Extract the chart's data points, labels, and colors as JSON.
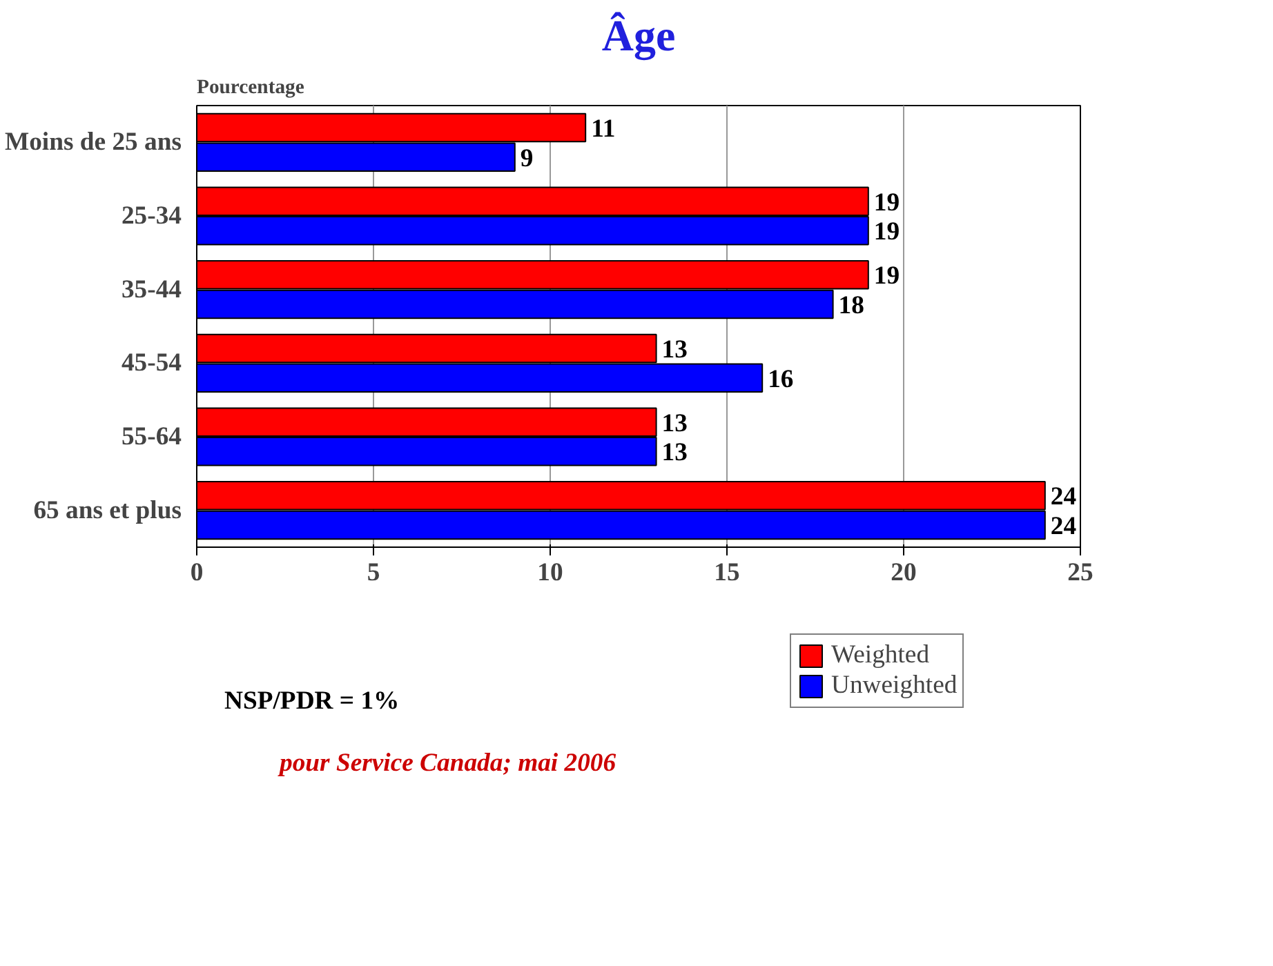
{
  "chart_data": {
    "type": "bar",
    "orientation": "horizontal",
    "title": "Âge",
    "xlabel": "Pourcentage",
    "categories": [
      "Moins de 25 ans",
      "25-34",
      "35-44",
      "45-54",
      "55-64",
      "65 ans et plus"
    ],
    "series": [
      {
        "name": "Weighted",
        "color": "#ff0000",
        "values": [
          11,
          19,
          19,
          13,
          13,
          24
        ]
      },
      {
        "name": "Unweighted",
        "color": "#0000ff",
        "values": [
          9,
          19,
          18,
          16,
          13,
          24
        ]
      }
    ],
    "xlim": [
      0,
      25
    ],
    "xticks": [
      0,
      5,
      10,
      15,
      20,
      25
    ],
    "grid": "x",
    "legend": "bottom",
    "data_labels": true,
    "annotations": [
      "NSP/PDR = 1%",
      "pour Service Canada; mai 2006"
    ]
  }
}
